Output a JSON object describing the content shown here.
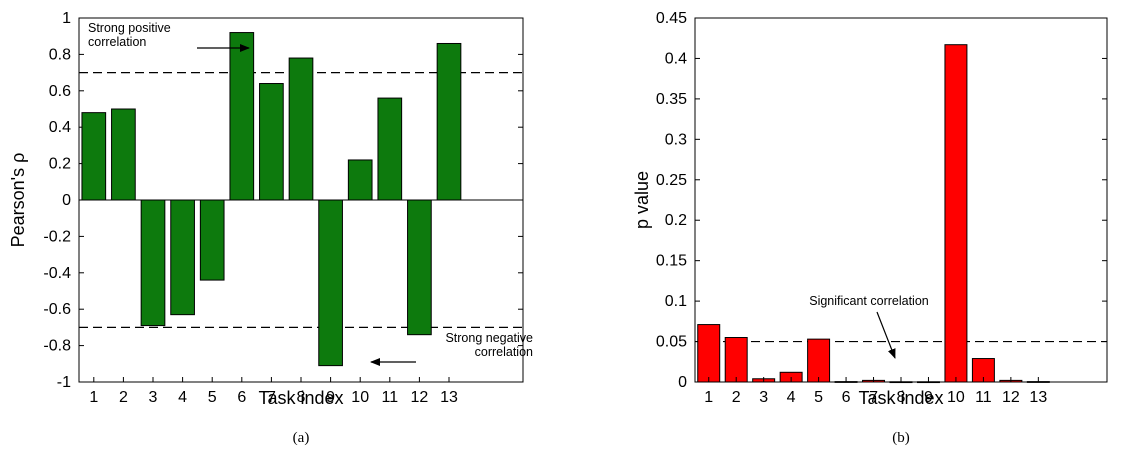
{
  "chart_data": [
    {
      "type": "bar",
      "caption": "(a)",
      "xlabel": "Task index",
      "ylabel": "Pearson's ρ",
      "ylim": [
        -1,
        1
      ],
      "yticks": [
        1,
        0.8,
        0.6,
        0.4,
        0.2,
        0,
        -0.2,
        -0.4,
        -0.6,
        -0.8,
        -1
      ],
      "ytick_labels": [
        "1",
        "0.8",
        "0.6",
        "0.4",
        "0.2",
        "0",
        "-0.2",
        "-0.4",
        "-0.6",
        "-0.8",
        "-1"
      ],
      "categories": [
        "1",
        "2",
        "3",
        "4",
        "5",
        "6",
        "7",
        "8",
        "9",
        "10",
        "11",
        "12",
        "13"
      ],
      "values": [
        0.48,
        0.5,
        -0.69,
        -0.63,
        -0.44,
        0.92,
        0.64,
        0.78,
        -0.91,
        0.22,
        0.56,
        -0.74,
        0.86
      ],
      "bar_color": "#0d7a0d",
      "reference_lines": [
        0.7,
        -0.7
      ],
      "annotations": [
        {
          "lines": [
            "Strong positive",
            "correlation"
          ],
          "points_to": {
            "category": "6",
            "value": 0.92
          }
        },
        {
          "lines": [
            "Strong negative",
            "correlation"
          ],
          "points_to": {
            "category": "9",
            "value": -0.91
          }
        }
      ],
      "grid": false
    },
    {
      "type": "bar",
      "caption": "(b)",
      "xlabel": "Task index",
      "ylabel": "p value",
      "ylim": [
        0,
        0.45
      ],
      "yticks": [
        0.45,
        0.4,
        0.35,
        0.3,
        0.25,
        0.2,
        0.15,
        0.1,
        0.05,
        0
      ],
      "ytick_labels": [
        "0.45",
        "0.4",
        "0.35",
        "0.3",
        "0.25",
        "0.2",
        "0.15",
        "0.1",
        "0.05",
        "0"
      ],
      "categories": [
        "1",
        "2",
        "3",
        "4",
        "5",
        "6",
        "7",
        "8",
        "9",
        "10",
        "11",
        "12",
        "13"
      ],
      "values": [
        0.071,
        0.055,
        0.004,
        0.012,
        0.053,
        0.0005,
        0.002,
        0.0003,
        0.0003,
        0.417,
        0.029,
        0.002,
        0.0005
      ],
      "bar_color": "#ff0000",
      "reference_lines": [
        0.05
      ],
      "annotations": [
        {
          "lines": [
            "Significant correlation"
          ],
          "points_to": {
            "category": "7",
            "value": 0.03
          }
        }
      ],
      "grid": false
    }
  ]
}
